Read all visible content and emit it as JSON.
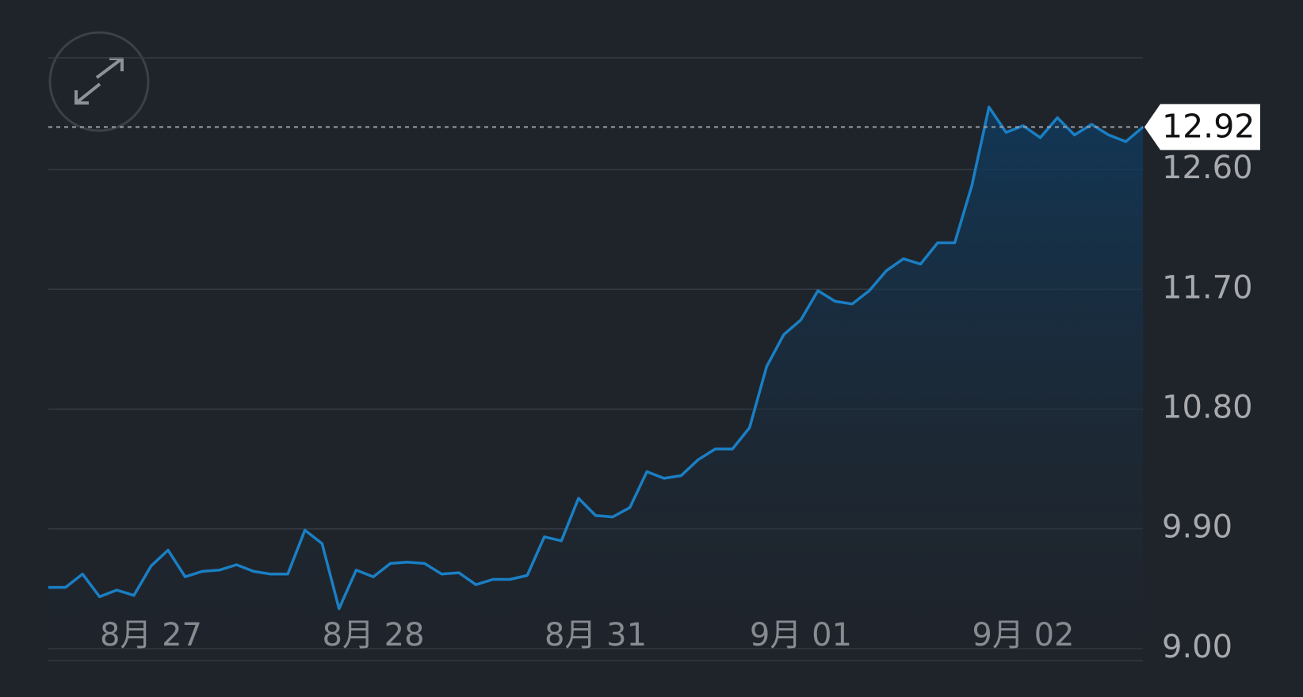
{
  "chart_data": {
    "type": "line",
    "categories": [
      null,
      null,
      null,
      null,
      null,
      null,
      "8月 27",
      null,
      null,
      null,
      null,
      null,
      null,
      null,
      null,
      null,
      null,
      null,
      null,
      "8月 28",
      null,
      null,
      null,
      null,
      null,
      null,
      null,
      null,
      null,
      null,
      null,
      null,
      "8月 31",
      null,
      null,
      null,
      null,
      null,
      null,
      null,
      null,
      null,
      null,
      null,
      "9月 01",
      null,
      null,
      null,
      null,
      null,
      null,
      null,
      null,
      null,
      null,
      null,
      null,
      "9月 02",
      null,
      null,
      null,
      null,
      null,
      null,
      null
    ],
    "series": [
      {
        "name": null,
        "color": "#1a7fc4",
        "values": [
          9.46,
          9.46,
          9.56,
          9.39,
          9.44,
          9.4,
          9.62,
          9.74,
          9.54,
          9.58,
          9.59,
          9.63,
          9.58,
          9.56,
          9.56,
          9.89,
          9.79,
          9.3,
          9.59,
          9.54,
          9.64,
          9.65,
          9.64,
          9.56,
          9.57,
          9.48,
          9.52,
          9.52,
          9.55,
          9.84,
          9.81,
          10.13,
          10.0,
          9.99,
          10.06,
          10.33,
          10.28,
          10.3,
          10.42,
          10.5,
          10.5,
          10.66,
          11.12,
          11.36,
          11.47,
          11.69,
          11.61,
          11.59,
          11.69,
          11.84,
          11.93,
          11.89,
          12.05,
          12.05,
          12.48,
          13.07,
          12.88,
          12.93,
          12.84,
          12.99,
          12.86,
          12.94,
          12.86,
          12.81,
          12.92
        ]
      }
    ],
    "ylim": [
      8.91,
      13.44
    ],
    "yticks": [
      {
        "value": 9.0,
        "label": "9.00"
      },
      {
        "value": 9.9,
        "label": "9.90"
      },
      {
        "value": 10.8,
        "label": "10.80"
      },
      {
        "value": 11.7,
        "label": "11.70"
      },
      {
        "value": 12.6,
        "label": "12.60"
      }
    ],
    "last_price": {
      "value": 12.92,
      "label": "12.92"
    },
    "grid": true
  }
}
